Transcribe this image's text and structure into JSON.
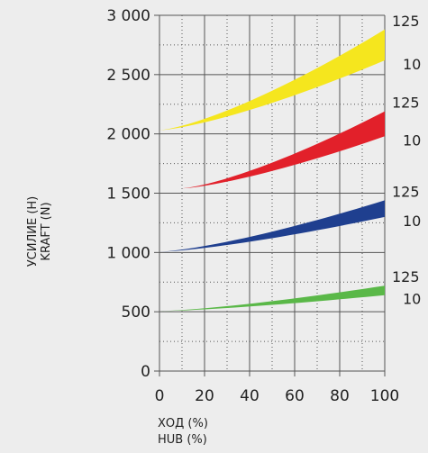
{
  "chart_data": {
    "type": "area",
    "title": "",
    "xlabel": [
      "ХОД (%)",
      "HUB (%)"
    ],
    "ylabel": [
      "УСИЛИЕ (Н)",
      "KRAFT (N)"
    ],
    "xlim": [
      0,
      100
    ],
    "ylim": [
      0,
      3000
    ],
    "x_ticks": [
      0,
      20,
      40,
      60,
      80,
      100
    ],
    "x_tick_labels": [
      "0",
      "20",
      "40",
      "60",
      "80",
      "100"
    ],
    "y_ticks": [
      0,
      500,
      1000,
      1500,
      2000,
      2500,
      3000
    ],
    "y_tick_labels": [
      "0",
      "500",
      "1 000",
      "1 500",
      "2 000",
      "2 500",
      "3 000"
    ],
    "grid": {
      "major": true,
      "minor_dotted": true
    },
    "series": [
      {
        "color": "#f5e61e",
        "x": [
          0,
          100
        ],
        "upper": [
          2030,
          2880
        ],
        "lower": [
          2030,
          2620
        ],
        "label_upper": "125",
        "label_lower": "10"
      },
      {
        "color": "#e2202a",
        "x": [
          10,
          100
        ],
        "upper": [
          1540,
          2190
        ],
        "lower": [
          1540,
          1980
        ],
        "label_upper": "125",
        "label_lower": "10"
      },
      {
        "color": "#1f3f8f",
        "x": [
          0,
          100
        ],
        "upper": [
          1005,
          1440
        ],
        "lower": [
          1005,
          1300
        ],
        "label_upper": "125",
        "label_lower": "10"
      },
      {
        "color": "#5ab848",
        "x": [
          0,
          100
        ],
        "upper": [
          505,
          720
        ],
        "lower": [
          505,
          640
        ],
        "label_upper": "125",
        "label_lower": "10"
      }
    ]
  }
}
